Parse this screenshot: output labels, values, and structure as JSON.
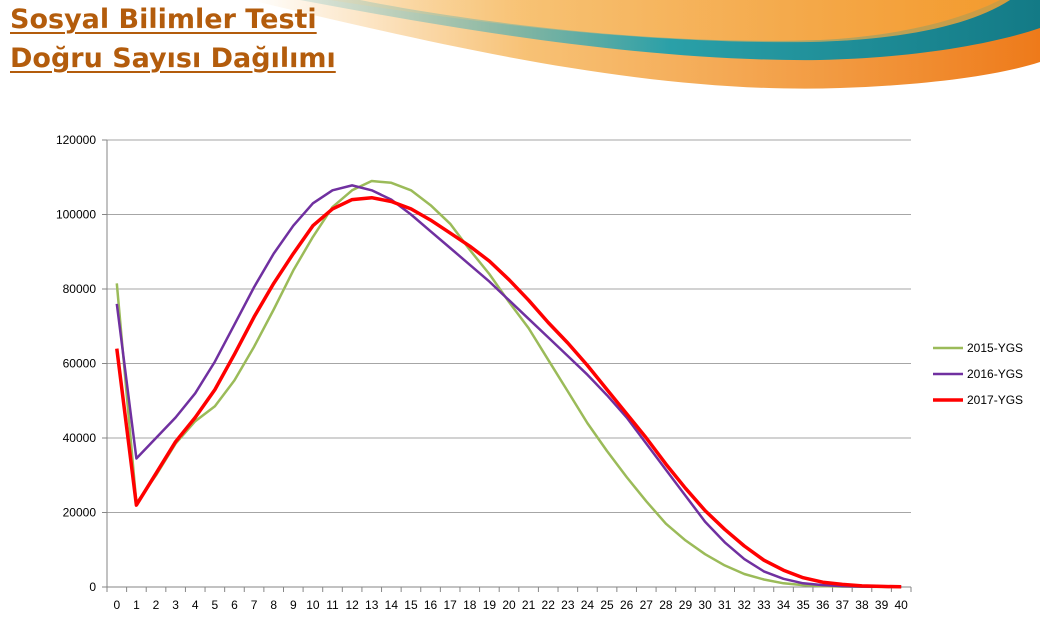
{
  "slide": {
    "title_line1": "Sosyal Bilimler Testi",
    "title_line2": "Doğru Sayısı Dağılımı"
  },
  "colors": {
    "title": "#b35c0c",
    "banner_orange": "#f08a1e",
    "banner_teal": "#1f8e9a",
    "banner_gold": "#f6b13a"
  },
  "chart_data": {
    "type": "line",
    "x": [
      0,
      1,
      2,
      3,
      4,
      5,
      6,
      7,
      8,
      9,
      10,
      11,
      12,
      13,
      14,
      15,
      16,
      17,
      18,
      19,
      20,
      21,
      22,
      23,
      24,
      25,
      26,
      27,
      28,
      29,
      30,
      31,
      32,
      33,
      34,
      35,
      36,
      37,
      38,
      39,
      40
    ],
    "series": [
      {
        "name": "2015-YGS",
        "color": "#9bbb59",
        "values": [
          81500,
          22500,
          30000,
          38500,
          44500,
          48500,
          55500,
          64500,
          74500,
          85000,
          94000,
          102000,
          106500,
          109000,
          108500,
          106500,
          102500,
          97500,
          90500,
          84000,
          76500,
          69500,
          61000,
          52500,
          44000,
          36500,
          29500,
          23000,
          17000,
          12500,
          8800,
          5800,
          3500,
          2000,
          1000,
          500,
          250,
          120,
          60,
          30,
          10
        ]
      },
      {
        "name": "2016-YGS",
        "color": "#7030a0",
        "values": [
          76000,
          34500,
          40000,
          45500,
          52000,
          60500,
          70500,
          80500,
          89500,
          97000,
          103000,
          106500,
          107800,
          106500,
          104000,
          100000,
          95500,
          91000,
          86500,
          82000,
          77000,
          72000,
          67000,
          62000,
          57000,
          51500,
          45500,
          38500,
          31500,
          24500,
          17500,
          12000,
          7500,
          4200,
          2200,
          1000,
          500,
          250,
          100,
          50,
          20
        ]
      },
      {
        "name": "2017-YGS",
        "color": "#ff0000",
        "values": [
          64000,
          22000,
          30500,
          39000,
          45500,
          53000,
          62500,
          72500,
          81500,
          89500,
          97000,
          101500,
          104000,
          104500,
          103500,
          101500,
          98500,
          95000,
          91500,
          87500,
          82500,
          77000,
          71000,
          65500,
          59500,
          53000,
          46500,
          40000,
          33000,
          26500,
          20500,
          15500,
          11000,
          7200,
          4500,
          2500,
          1300,
          700,
          300,
          150,
          60
        ]
      }
    ],
    "ylim": [
      0,
      120000
    ],
    "yticks": [
      0,
      20000,
      40000,
      60000,
      80000,
      100000,
      120000
    ],
    "grid": true,
    "legend": "right"
  }
}
